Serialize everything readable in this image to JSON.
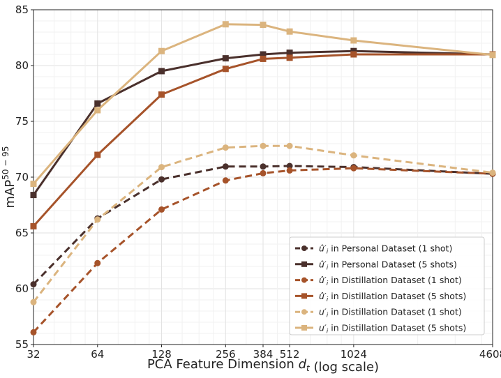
{
  "chart_data": {
    "type": "line",
    "title": "",
    "xlabel": "PCA Feature Dimension",
    "xlabel_symbol": "d",
    "xlabel_subscript": "t",
    "xlabel_suffix": "(log scale)",
    "ylabel": "mAP",
    "ylabel_superscript": "50 − 95",
    "xscale": "log2",
    "xlim": [
      32,
      4608
    ],
    "ylim": [
      55,
      85
    ],
    "x_ticks": [
      32,
      64,
      128,
      256,
      384,
      512,
      1024,
      4608
    ],
    "y_ticks": [
      55,
      60,
      65,
      70,
      75,
      80,
      85
    ],
    "grid": true,
    "legend_position": "lower-right",
    "x": [
      32,
      64,
      128,
      256,
      384,
      512,
      1024,
      4608
    ],
    "series": [
      {
        "name": "û′ᵢ in Personal Dataset (1 shot)",
        "label_symbol": "û′",
        "label_sub": "i",
        "label_text": " in Personal Dataset (1 shot)",
        "color": "#4a302c",
        "linestyle": "dashed",
        "marker": "circle",
        "values": [
          60.4,
          66.3,
          69.8,
          70.95,
          70.95,
          71.0,
          70.9,
          70.3
        ]
      },
      {
        "name": "û′ᵢ in Personal Dataset (5 shots)",
        "label_symbol": "û′",
        "label_sub": "i",
        "label_text": " in Personal Dataset (5 shots)",
        "color": "#4a302c",
        "linestyle": "solid",
        "marker": "square",
        "values": [
          68.4,
          76.6,
          79.5,
          80.65,
          81.0,
          81.15,
          81.3,
          81.0
        ]
      },
      {
        "name": "û′ᵢ in Distillation Dataset (1 shot)",
        "label_symbol": "û′",
        "label_sub": "i",
        "label_text": " in Distillation Dataset (1 shot)",
        "color": "#a6532a",
        "linestyle": "dashed",
        "marker": "circle",
        "values": [
          56.1,
          62.3,
          67.1,
          69.7,
          70.35,
          70.6,
          70.8,
          70.3
        ]
      },
      {
        "name": "û′ᵢ in Distillation Dataset (5 shots)",
        "label_symbol": "û′",
        "label_sub": "i",
        "label_text": " in Distillation Dataset (5 shots)",
        "color": "#a6532a",
        "linestyle": "solid",
        "marker": "square",
        "values": [
          65.6,
          72.0,
          77.4,
          79.7,
          80.6,
          80.7,
          81.0,
          81.0
        ]
      },
      {
        "name": "u′ᵢ in Distillation Dataset (1 shot)",
        "label_symbol": "u′",
        "label_sub": "i",
        "label_text": " in Distillation Dataset (1 shot)",
        "color": "#dbb47e",
        "linestyle": "dashed",
        "marker": "circle",
        "values": [
          58.8,
          66.2,
          70.9,
          72.65,
          72.8,
          72.8,
          71.95,
          70.4
        ]
      },
      {
        "name": "u′ᵢ in Distillation Dataset (5 shots)",
        "label_symbol": "u′",
        "label_sub": "i",
        "label_text": " in Distillation Dataset (5 shots)",
        "color": "#dbb47e",
        "linestyle": "solid",
        "marker": "square",
        "values": [
          69.4,
          76.0,
          81.3,
          83.7,
          83.65,
          83.05,
          82.25,
          80.95
        ]
      }
    ]
  }
}
